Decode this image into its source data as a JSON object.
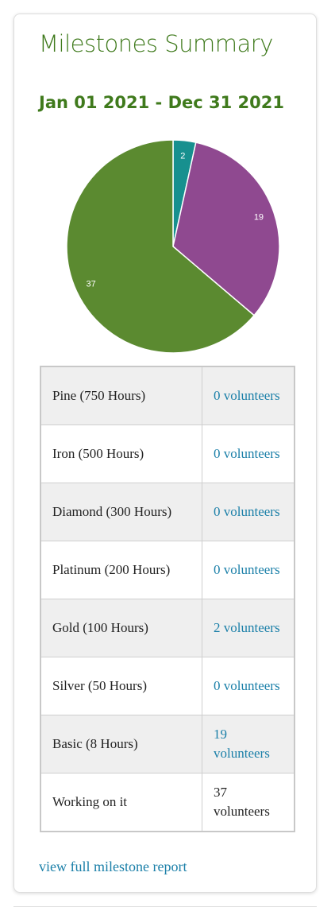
{
  "header": {
    "title": "Milestones Summary"
  },
  "chart_data": {
    "type": "pie",
    "title": "Jan 01 2021 - Dec 31 2021",
    "values": [
      2,
      19,
      37
    ],
    "colors": [
      "#17908f",
      "#8f4990",
      "#5b8a30"
    ]
  },
  "table": {
    "rows": [
      {
        "milestone": "Pine (750 Hours)",
        "volunteers": "0 volunteers",
        "linked": true
      },
      {
        "milestone": "Iron (500 Hours)",
        "volunteers": "0 volunteers",
        "linked": true
      },
      {
        "milestone": "Diamond (300 Hours)",
        "volunteers": "0 volunteers",
        "linked": true
      },
      {
        "milestone": "Platinum (200 Hours)",
        "volunteers": "0 volunteers",
        "linked": true
      },
      {
        "milestone": "Gold (100 Hours)",
        "volunteers": "2 volunteers",
        "linked": true
      },
      {
        "milestone": "Silver (50 Hours)",
        "volunteers": "0 volunteers",
        "linked": true
      },
      {
        "milestone": "Basic (8 Hours)",
        "volunteers": "19 volunteers",
        "linked": true
      },
      {
        "milestone": "Working on it",
        "volunteers": "37 volunteers",
        "linked": false
      }
    ]
  },
  "footer": {
    "link": "view full milestone report"
  }
}
